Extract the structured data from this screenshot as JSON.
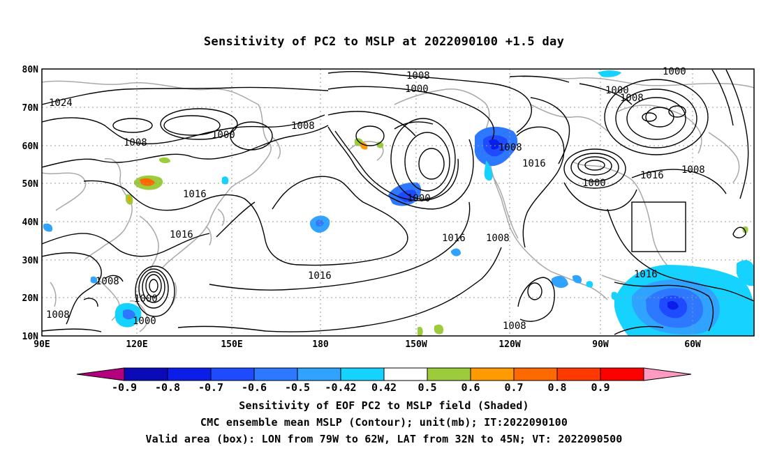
{
  "title": "Sensitivity of PC2 to MSLP at 2022090100 +1.5 day",
  "map": {
    "lat_ticks": [
      "80N",
      "70N",
      "60N",
      "50N",
      "40N",
      "30N",
      "20N",
      "10N"
    ],
    "lon_ticks": [
      "90E",
      "120E",
      "150E",
      "180",
      "150W",
      "120W",
      "90W",
      "60W"
    ],
    "contour_labels": [
      "1024",
      "1008",
      "1000",
      "1008",
      "1016",
      "1016",
      "1008",
      "1000",
      "1008",
      "1000",
      "1008",
      "1000",
      "1008",
      "1016",
      "1000",
      "1016",
      "1008",
      "1016",
      "1000",
      "1008",
      "1000",
      "1016",
      "1008",
      "1008",
      "1000",
      "1008",
      "1016",
      "1008",
      "1016",
      "1016"
    ],
    "valid_box": {
      "lon": [
        "79W",
        "62W"
      ],
      "lat": [
        "32N",
        "45N"
      ]
    }
  },
  "colorbar": {
    "labels": [
      "-0.9",
      "-0.8",
      "-0.7",
      "-0.6",
      "-0.5",
      "-0.42",
      "0.42",
      "0.5",
      "0.6",
      "0.7",
      "0.8",
      "0.9"
    ],
    "colors": [
      "#b4007f",
      "#0a0ab8",
      "#0a1ee8",
      "#1e4bff",
      "#2d78ff",
      "#2fa3ff",
      "#16d2ff",
      "#ffffff",
      "#9ccb3b",
      "#ff9a00",
      "#ff6a00",
      "#ff3a00",
      "#ff0000",
      "#ff9ac0"
    ]
  },
  "caption": {
    "line1": "Sensitivity of EOF PC2 to MSLP field (Shaded)",
    "line2": "CMC ensemble mean MSLP (Contour); unit(mb); IT:2022090100",
    "line3": "Valid area (box): LON from 79W to 62W, LAT from 32N to 45N; VT: 2022090500"
  }
}
